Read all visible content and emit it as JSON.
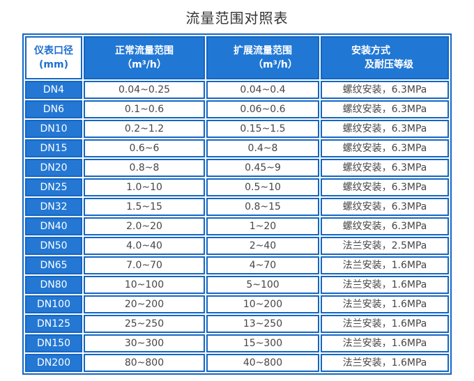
{
  "page": {
    "title": "流量范围对照表"
  },
  "colors": {
    "header_fill": "#2177d4",
    "cell_border": "#1466c2",
    "first_header_text": "#1f6fd0",
    "body_text": "#454545",
    "header_text": "#ffffff",
    "background": "#ffffff"
  },
  "table": {
    "headers": [
      {
        "line1": "仪表口径",
        "line2": "(mm)"
      },
      {
        "line1": "正常流量范围",
        "line2": "（m³/h）"
      },
      {
        "line1": "扩展流量范围",
        "line2": "（m³/h）"
      },
      {
        "line1": "安装方式",
        "line2": "及耐压等级"
      }
    ]
  },
  "chart_data": {
    "type": "table",
    "title": "流量范围对照表",
    "columns": [
      "仪表口径 (mm)",
      "正常流量范围（m³/h）",
      "扩展流量范围（m³/h）",
      "安装方式及耐压等级"
    ],
    "rows": [
      [
        "DN4",
        "0.04~0.25",
        "0.04~0.4",
        "螺纹安装，6.3MPa"
      ],
      [
        "DN6",
        "0.1~0.6",
        "0.06~0.6",
        "螺纹安装，6.3MPa"
      ],
      [
        "DN10",
        "0.2~1.2",
        "0.15~1.5",
        "螺纹安装，6.3MPa"
      ],
      [
        "DN15",
        "0.6~6",
        "0.4~8",
        "螺纹安装，6.3MPa"
      ],
      [
        "DN20",
        "0.8~8",
        "0.45~9",
        "螺纹安装，6.3MPa"
      ],
      [
        "DN25",
        "1.0~10",
        "0.5~10",
        "螺纹安装，6.3MPa"
      ],
      [
        "DN32",
        "1.5~15",
        "0.8~15",
        "螺纹安装，6.3MPa"
      ],
      [
        "DN40",
        "2.0~20",
        "1~20",
        "螺纹安装，6.3MPa"
      ],
      [
        "DN50",
        "4.0~40",
        "2~40",
        "法兰安装，2.5MPa"
      ],
      [
        "DN65",
        "7.0~70",
        "4~70",
        "法兰安装，1.6MPa"
      ],
      [
        "DN80",
        "10~100",
        "5~100",
        "法兰安装，1.6MPa"
      ],
      [
        "DN100",
        "20~200",
        "10~200",
        "法兰安装，1.6MPa"
      ],
      [
        "DN125",
        "25~250",
        "13~250",
        "法兰安装，1.6MPa"
      ],
      [
        "DN150",
        "30~300",
        "15~300",
        "法兰安装，1.6MPa"
      ],
      [
        "DN200",
        "80~800",
        "40~800",
        "法兰安装，1.6MPa"
      ]
    ]
  }
}
